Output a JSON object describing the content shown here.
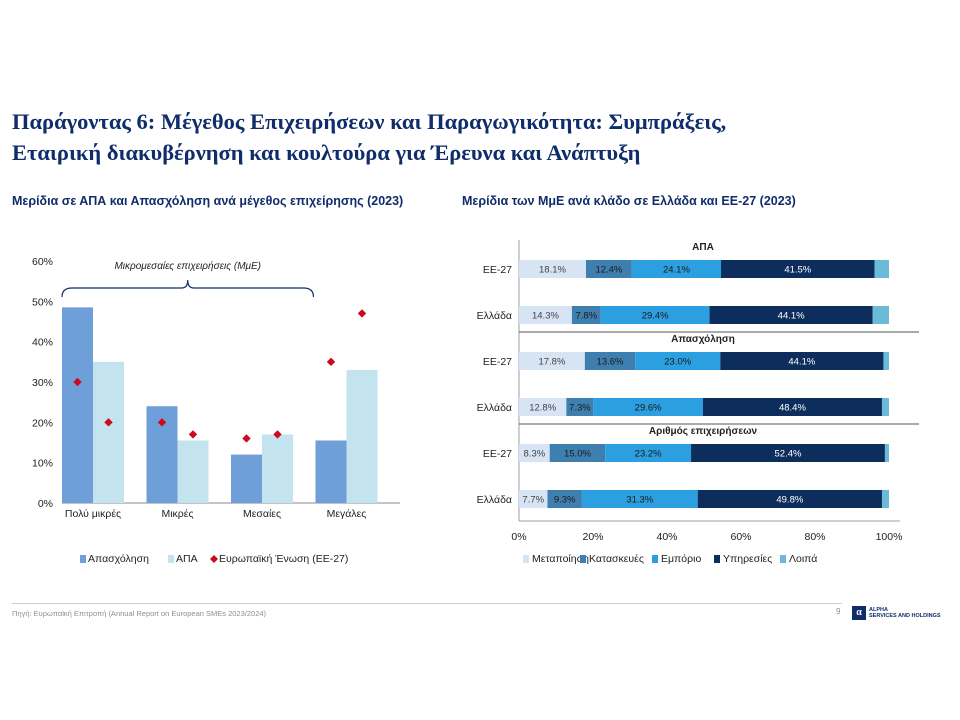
{
  "title": {
    "line1": "Παράγοντας 6: Μέγεθος Επιχειρήσεων και Παραγωγικότητα: Συμπράξεις,",
    "line2": "Εταιρική διακυβέρνηση και κουλτούρα για Έρευνα και Ανάπτυξη"
  },
  "footer": {
    "source": "Πηγή: Ευρωπαϊκή Επιτροπή (Annual Report on European SMEs 2023/2024)",
    "page": "9",
    "logo_mark": "α",
    "logo_line1": "ALPHA",
    "logo_line2": "SERVICES AND HOLDINGS"
  },
  "colors": {
    "title": "#0f2d6b",
    "employment": "#6f9fd8",
    "gva": "#c3e3ee",
    "eu27": "#cc0a1e",
    "manufacturing": "#d6e4f3",
    "construction": "#3e7fb0",
    "trade": "#2b9fe0",
    "services": "#0d2e5c",
    "other": "#6bbad8"
  },
  "chart_data": [
    {
      "type": "bar",
      "title": "Μερίδια σε ΑΠΑ και Απασχόληση ανά μέγεθος επιχείρησης (2023)",
      "categories": [
        "Πολύ μικρές",
        "Μικρές",
        "Μεσαίες",
        "Μεγάλες"
      ],
      "ylim": [
        0,
        60
      ],
      "y_ticks": [
        "0%",
        "10%",
        "20%",
        "30%",
        "40%",
        "50%",
        "60%"
      ],
      "grid": false,
      "annotation": "Μικρομεσαίες επιχειρήσεις (ΜμΕ)",
      "legend_position": "bottom",
      "series": [
        {
          "name": "Απασχόληση",
          "kind": "bar",
          "values": [
            48.5,
            24.0,
            12.0,
            15.5
          ]
        },
        {
          "name": "ΑΠΑ",
          "kind": "bar",
          "values": [
            35.0,
            15.5,
            17.0,
            33.0
          ]
        },
        {
          "name": "Ευρωπαϊκή Ένωση (ΕΕ-27)",
          "kind": "marker",
          "values": [
            [
              30.0,
              20.0
            ],
            [
              20.0,
              17.0
            ],
            [
              16.0,
              17.0
            ],
            [
              35.0,
              47.0
            ]
          ]
        }
      ]
    },
    {
      "type": "bar",
      "orientation": "horizontal",
      "stacked": true,
      "title": "Μερίδια των ΜμΕ ανά κλάδο σε Ελλάδα και ΕΕ-27 (2023)",
      "xlim": [
        0,
        100
      ],
      "x_ticks": [
        "0%",
        "20%",
        "40%",
        "60%",
        "80%",
        "100%"
      ],
      "legend_position": "bottom",
      "segments": [
        "Μεταποίηση",
        "Κατασκευές",
        "Εμπόριο",
        "Υπηρεσίες",
        "Λοιπά"
      ],
      "groups": [
        {
          "name": "ΑΠΑ",
          "rows": [
            {
              "label": "ΕΕ-27",
              "values": [
                18.1,
                12.4,
                24.1,
                41.5,
                3.9
              ],
              "value_labels": [
                "18.1%",
                "12.4%",
                "24.1%",
                "41.5%",
                ""
              ]
            },
            {
              "label": "Ελλάδα",
              "values": [
                14.3,
                7.8,
                29.4,
                44.1,
                4.4
              ],
              "value_labels": [
                "14.3%",
                "7.8%",
                "29.4%",
                "44.1%",
                ""
              ]
            }
          ]
        },
        {
          "name": "Απασχόληση",
          "rows": [
            {
              "label": "ΕΕ-27",
              "values": [
                17.8,
                13.6,
                23.0,
                44.1,
                1.5
              ],
              "value_labels": [
                "17.8%",
                "13.6%",
                "23.0%",
                "44.1%",
                ""
              ]
            },
            {
              "label": "Ελλάδα",
              "values": [
                12.8,
                7.3,
                29.6,
                48.4,
                1.9
              ],
              "value_labels": [
                "12.8%",
                "7.3%",
                "29.6%",
                "48.4%",
                ""
              ]
            }
          ]
        },
        {
          "name": "Αριθμός επιχειρήσεων",
          "rows": [
            {
              "label": "ΕΕ-27",
              "values": [
                8.3,
                15.0,
                23.2,
                52.4,
                1.1
              ],
              "value_labels": [
                "8.3%",
                "15.0%",
                "23.2%",
                "52.4%",
                ""
              ]
            },
            {
              "label": "Ελλάδα",
              "values": [
                7.7,
                9.3,
                31.3,
                49.8,
                1.9
              ],
              "value_labels": [
                "7.7%",
                "9.3%",
                "31.3%",
                "49.8%",
                ""
              ]
            }
          ]
        }
      ]
    }
  ]
}
